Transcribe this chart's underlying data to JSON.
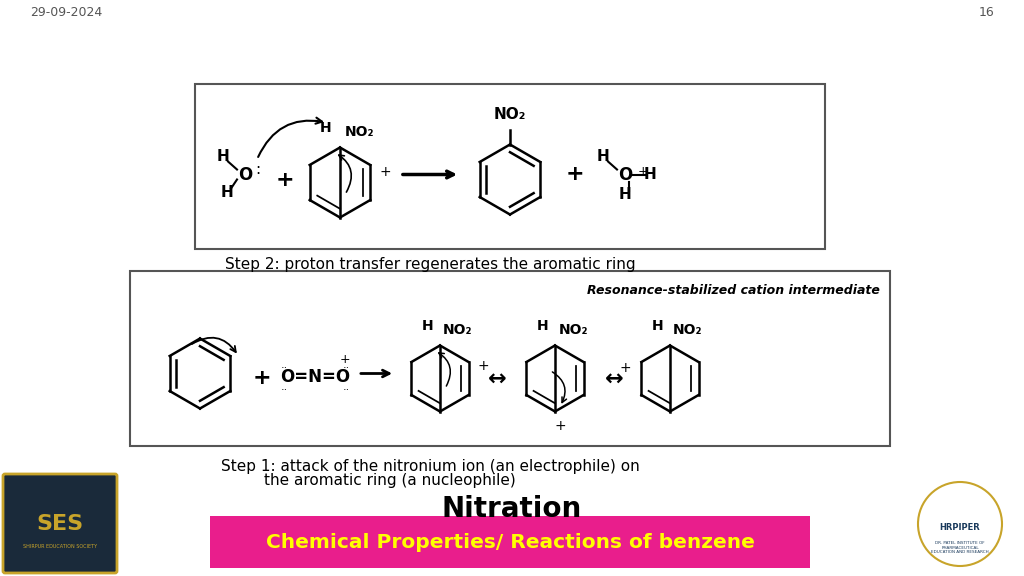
{
  "bg_color": "#ffffff",
  "header_bg": "#e91e8c",
  "header_text": "Chemical Properties/ Reactions of benzene",
  "header_text_color": "#ffff00",
  "title": "Nitration",
  "title_color": "#000000",
  "step1_text_line1": "Step 1: attack of the nitronium ion (an electrophile) on",
  "step1_text_line2": "the aromatic ring (a nucleophile)",
  "step2_text": "Step 2: proton transfer regenerates the aromatic ring",
  "resonance_label": "Resonance-stabilized cation intermediate",
  "date_text": "29-09-2024",
  "page_num": "16"
}
